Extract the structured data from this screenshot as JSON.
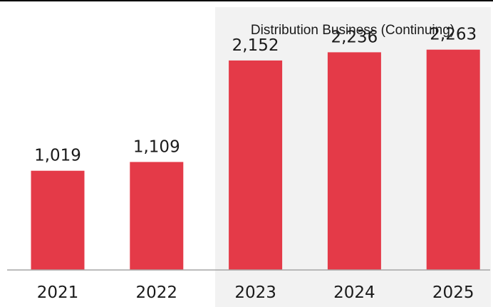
{
  "chart_data": {
    "type": "bar",
    "categories": [
      "2021",
      "2022",
      "2023",
      "2024",
      "2025"
    ],
    "values": [
      1019,
      1109,
      2152,
      2236,
      2263
    ],
    "value_labels": [
      "1,019",
      "1,109",
      "2,152",
      "2,236",
      "2,263"
    ],
    "ylim": [
      0,
      2700
    ],
    "grid": false,
    "highlight_group": {
      "label": "Distribution Business (Continuing)",
      "categories": [
        "2023",
        "2024",
        "2025"
      ]
    },
    "colors": {
      "bar": "#e43a48",
      "highlight_background": "#f2f2f2",
      "axis": "#a6a6a6",
      "top_rule": "#000000"
    }
  }
}
